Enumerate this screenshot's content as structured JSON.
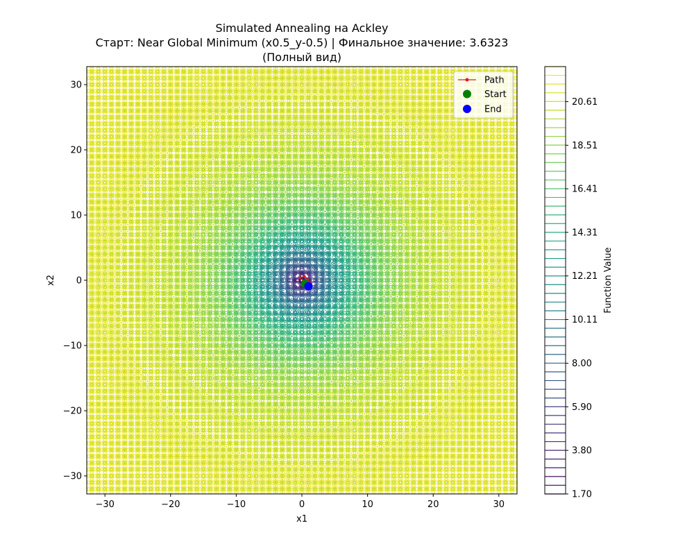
{
  "chart_data": {
    "type": "contour",
    "title_lines": [
      "Simulated Annealing на Ackley",
      "Старт: Near Global Minimum (x0.5_y-0.5) | Финальное значение: 3.6323",
      "(Полный вид)"
    ],
    "xlabel": "x1",
    "ylabel": "x2",
    "xlim": [
      -32.768,
      32.768
    ],
    "ylim": [
      -32.768,
      32.768
    ],
    "xticks": [
      -30,
      -20,
      -10,
      0,
      10,
      20,
      30
    ],
    "yticks": [
      -30,
      -20,
      -10,
      0,
      10,
      20,
      30
    ],
    "xtick_labels": [
      "−30",
      "−20",
      "−10",
      "0",
      "10",
      "20",
      "30"
    ],
    "ytick_labels": [
      "−30",
      "−20",
      "−10",
      "0",
      "10",
      "20",
      "30"
    ],
    "function": "Ackley",
    "colormap": "viridis",
    "legend_position": "upper right",
    "legend": [
      {
        "label": "Path",
        "marker": "line-dot",
        "color": "#e41a1c"
      },
      {
        "label": "Start",
        "marker": "circle",
        "color": "#008000"
      },
      {
        "label": "End",
        "marker": "circle",
        "color": "#0000ff"
      }
    ],
    "start_point": {
      "x": 0.5,
      "y": -0.5
    },
    "end_point": {
      "x": 1.0,
      "y": -0.9
    },
    "path_points": [
      {
        "x": 0.5,
        "y": -0.5
      },
      {
        "x": 0.2,
        "y": -0.1
      },
      {
        "x": -0.3,
        "y": 0.4
      },
      {
        "x": 0.4,
        "y": 0.6
      },
      {
        "x": 0.9,
        "y": 0.1
      },
      {
        "x": 1.3,
        "y": -0.4
      },
      {
        "x": 1.0,
        "y": -0.9
      }
    ],
    "final_value": 3.6323,
    "colorbar": {
      "label": "Function Value",
      "min": 1.7,
      "max": 22.3,
      "ticks": [
        1.7,
        3.8,
        5.9,
        8.0,
        10.11,
        12.21,
        14.31,
        16.41,
        18.51,
        20.61
      ],
      "tick_labels": [
        "1.70",
        "3.80",
        "5.90",
        "8.00",
        "10.11",
        "12.21",
        "14.31",
        "16.41",
        "18.51",
        "20.61"
      ]
    }
  }
}
